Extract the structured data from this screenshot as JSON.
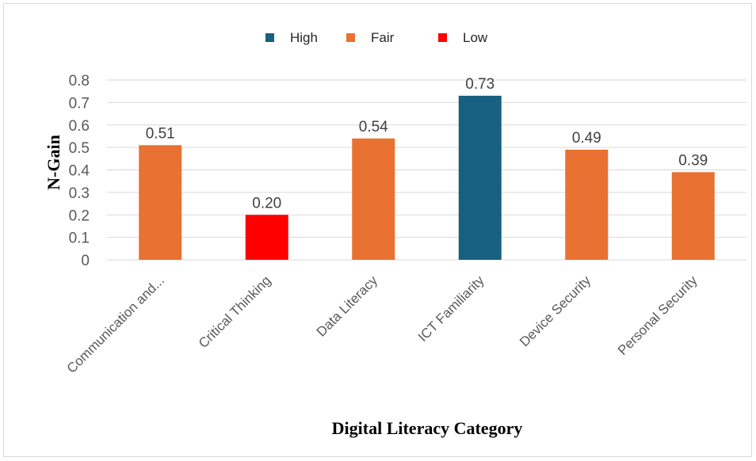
{
  "legend": [
    {
      "label": "High",
      "color": "#17607f"
    },
    {
      "label": "Fair",
      "color": "#e97132"
    },
    {
      "label": "Low",
      "color": "#ff0000"
    }
  ],
  "chart_data": {
    "type": "bar",
    "title": "",
    "xlabel": "Digital Literacy Category",
    "ylabel": "N-Gain",
    "ylim": [
      0,
      0.8
    ],
    "yticks": [
      "0",
      "0.1",
      "0.2",
      "0.3",
      "0.4",
      "0.5",
      "0.6",
      "0.7",
      "0.8"
    ],
    "categories": [
      "Communication and...",
      "Critical Thinking",
      "Data Literacy",
      "ICT Familiarity",
      "Device Security",
      "Personal Security"
    ],
    "values": [
      0.51,
      0.2,
      0.54,
      0.73,
      0.49,
      0.39
    ],
    "value_labels": [
      "0.51",
      "0.20",
      "0.54",
      "0.73",
      "0.49",
      "0.39"
    ],
    "levels": [
      "Fair",
      "Low",
      "Fair",
      "High",
      "Fair",
      "Fair"
    ],
    "grid": true,
    "legend_position": "top"
  }
}
